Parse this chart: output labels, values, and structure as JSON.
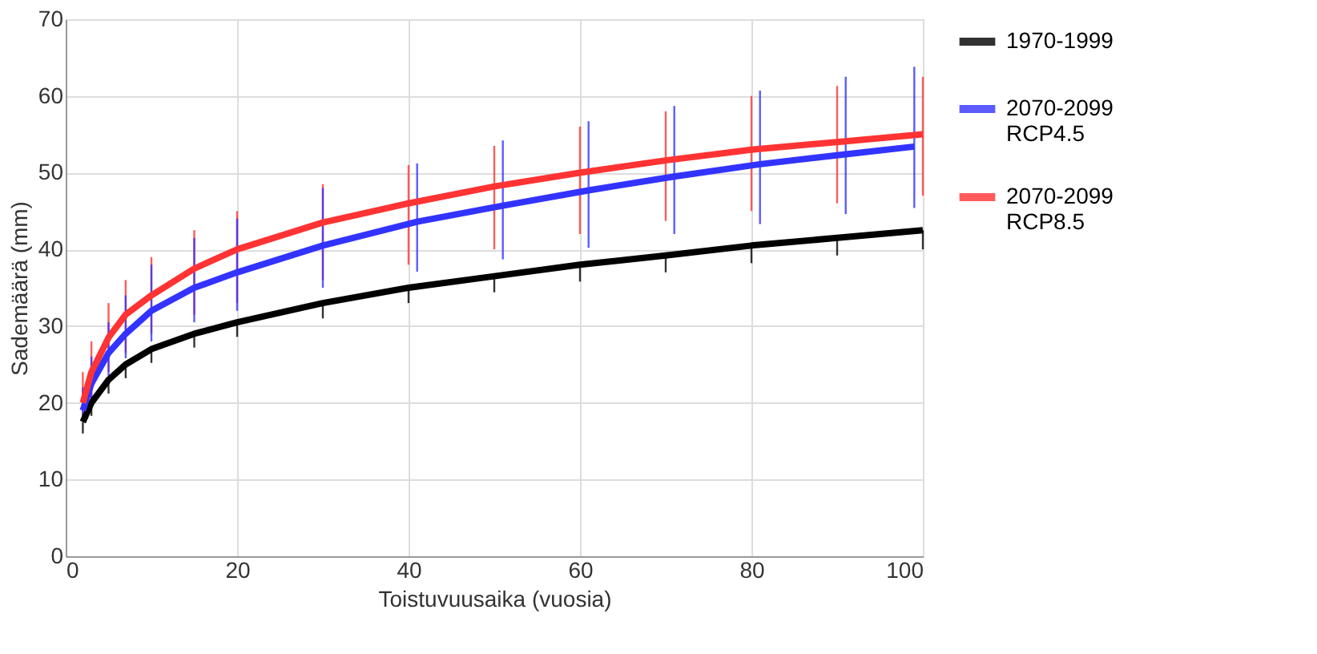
{
  "chart_data": {
    "type": "line",
    "xlabel": "Toistuvuusaika (vuosia)",
    "ylabel": "Sademäärä (mm)",
    "x": [
      2,
      3,
      5,
      7,
      10,
      15,
      20,
      30,
      40,
      50,
      60,
      70,
      80,
      90,
      100
    ],
    "xlim": [
      0,
      100
    ],
    "xticks": [
      0,
      20,
      40,
      60,
      80,
      100
    ],
    "ylim": [
      0,
      70
    ],
    "yticks": [
      0,
      10,
      20,
      30,
      40,
      50,
      60,
      70
    ],
    "grid": true,
    "legend": "right",
    "marker": "none",
    "line_style": "solid",
    "series": [
      {
        "name": "1970-1999",
        "color": "#000000",
        "values": [
          17.5,
          20,
          23,
          25,
          27,
          29,
          30.5,
          33,
          35,
          36.5,
          38,
          39.2,
          40.5,
          41.5,
          42.5
        ],
        "errors": [
          [
            16,
            17.5
          ],
          [
            18.3,
            20
          ],
          [
            21.2,
            23
          ],
          [
            23.2,
            25
          ],
          [
            25.2,
            27
          ],
          [
            27.2,
            29
          ],
          [
            28.6,
            30.5
          ],
          [
            31,
            33
          ],
          [
            33,
            35
          ],
          [
            34.4,
            36.5
          ],
          [
            35.8,
            38
          ],
          [
            37,
            39.2
          ],
          [
            38.2,
            40.5
          ],
          [
            39.2,
            41.5
          ],
          [
            40,
            42.5
          ]
        ]
      },
      {
        "name": "2070-2099 RCP4.5",
        "color": "#3333ff",
        "x": [
          2,
          3,
          5,
          7,
          10,
          15,
          20,
          30,
          41,
          51,
          61,
          71,
          81,
          91,
          99
        ],
        "values": [
          19,
          22.5,
          26.5,
          29,
          32,
          35,
          37,
          40.5,
          43.6,
          45.7,
          47.7,
          49.5,
          51.1,
          52.4,
          53.4
        ],
        "errors": [
          [
            18.2,
            22
          ],
          [
            20,
            26
          ],
          [
            23.5,
            30.5
          ],
          [
            25.8,
            34
          ],
          [
            28,
            38
          ],
          [
            30.5,
            41.5
          ],
          [
            32,
            44
          ],
          [
            35,
            48
          ],
          [
            37.1,
            51.2
          ],
          [
            38.7,
            54.2
          ],
          [
            40.2,
            56.7
          ],
          [
            42,
            58.7
          ],
          [
            43.3,
            60.7
          ],
          [
            44.6,
            62.5
          ],
          [
            45.4,
            63.8
          ]
        ]
      },
      {
        "name": "2070-2099 RCP8.5",
        "color": "#ff3333",
        "values": [
          20,
          24,
          28.5,
          31.5,
          34,
          37.5,
          40,
          43.5,
          46,
          48.2,
          50,
          51.6,
          53,
          54,
          55
        ],
        "errors": [
          [
            17.8,
            24
          ],
          [
            20.5,
            28
          ],
          [
            24,
            33
          ],
          [
            26.5,
            36
          ],
          [
            29,
            39
          ],
          [
            31.5,
            42.5
          ],
          [
            33,
            45
          ],
          [
            36,
            48.5
          ],
          [
            38,
            51
          ],
          [
            40,
            53.5
          ],
          [
            42,
            56
          ],
          [
            43.7,
            58
          ],
          [
            45,
            60
          ],
          [
            46,
            61.3
          ],
          [
            47,
            62.5
          ]
        ]
      }
    ]
  }
}
